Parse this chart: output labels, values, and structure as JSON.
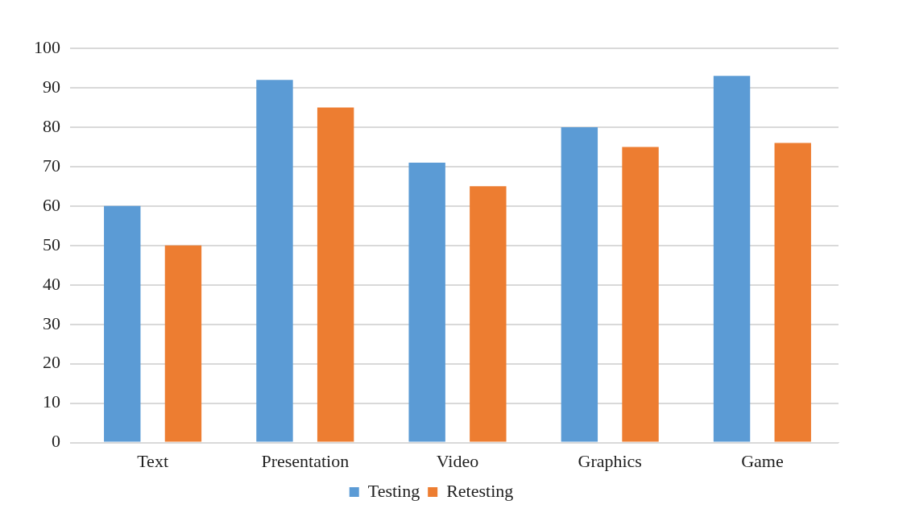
{
  "chart_data": {
    "type": "bar",
    "categories": [
      "Text",
      "Presentation",
      "Video",
      "Graphics",
      "Game"
    ],
    "series": [
      {
        "name": "Testing",
        "color": "#5b9bd5",
        "values": [
          60,
          92,
          71,
          80,
          93
        ]
      },
      {
        "name": "Retesting",
        "color": "#ed7d31",
        "values": [
          50,
          85,
          65,
          75,
          76
        ]
      }
    ],
    "ylim": [
      0,
      100
    ],
    "yticks": [
      0,
      10,
      20,
      30,
      40,
      50,
      60,
      70,
      80,
      90,
      100
    ],
    "grid": "y",
    "legend": "bottom"
  }
}
